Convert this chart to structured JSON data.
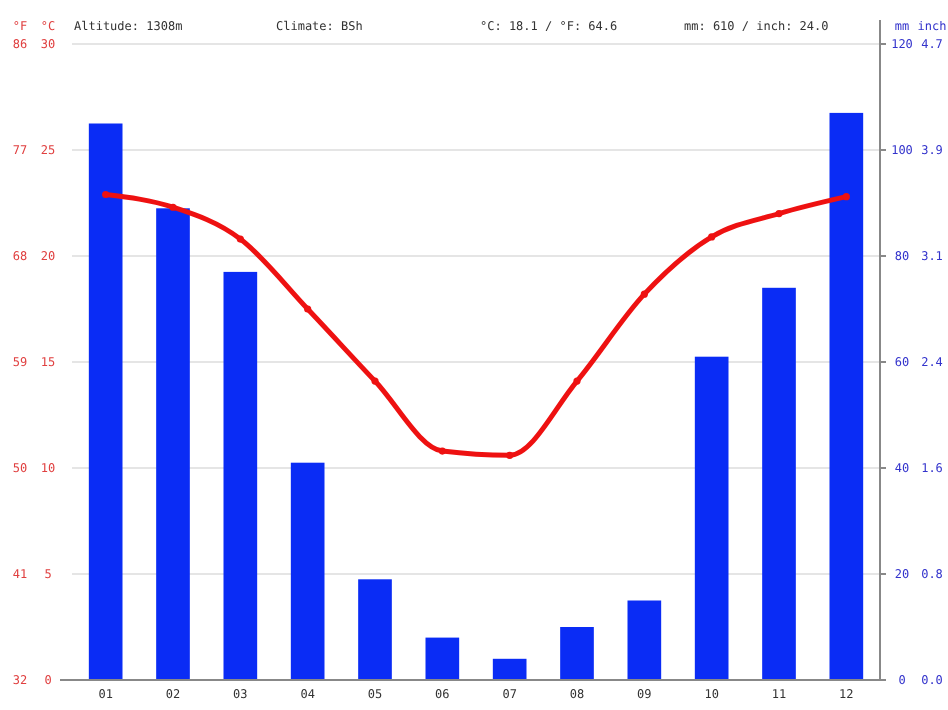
{
  "chart_data": {
    "type": "bar",
    "categories": [
      "01",
      "02",
      "03",
      "04",
      "05",
      "06",
      "07",
      "08",
      "09",
      "10",
      "11",
      "12"
    ],
    "series": [
      {
        "axis": "y2",
        "color": "#0a2cf5",
        "values": [
          105,
          89,
          77,
          41,
          19,
          8,
          4,
          10,
          15,
          61,
          74,
          107
        ]
      },
      {
        "type": "line",
        "axis": "y",
        "color": "#ee1111",
        "values": [
          22.9,
          22.3,
          20.8,
          17.5,
          14.1,
          10.8,
          10.6,
          14.1,
          18.2,
          20.9,
          22.0,
          22.8
        ]
      }
    ],
    "ylabel": "°C",
    "ylim": [
      0,
      30
    ],
    "yticks": [
      0,
      5,
      10,
      15,
      20,
      25,
      30
    ],
    "y3label": "°F",
    "y3lim": [
      32,
      86
    ],
    "y3ticks": [
      32,
      41,
      50,
      59,
      68,
      77,
      86
    ],
    "y2label": "mm",
    "y2lim": [
      0,
      120
    ],
    "y2ticks": [
      0,
      20,
      40,
      60,
      80,
      100,
      120
    ],
    "annotations": [
      "Altitude: 1308m",
      "Climate: BSh",
      "°C: 18.1 / °F: 64.6",
      "mm: 610 / inch: 24.0",
      "inch",
      "0.0",
      "0.8",
      "1.6",
      "2.4",
      "3.1",
      "3.9",
      "4.7"
    ],
    "grid": "y",
    "marker": "circle",
    "line_style": "solid"
  }
}
